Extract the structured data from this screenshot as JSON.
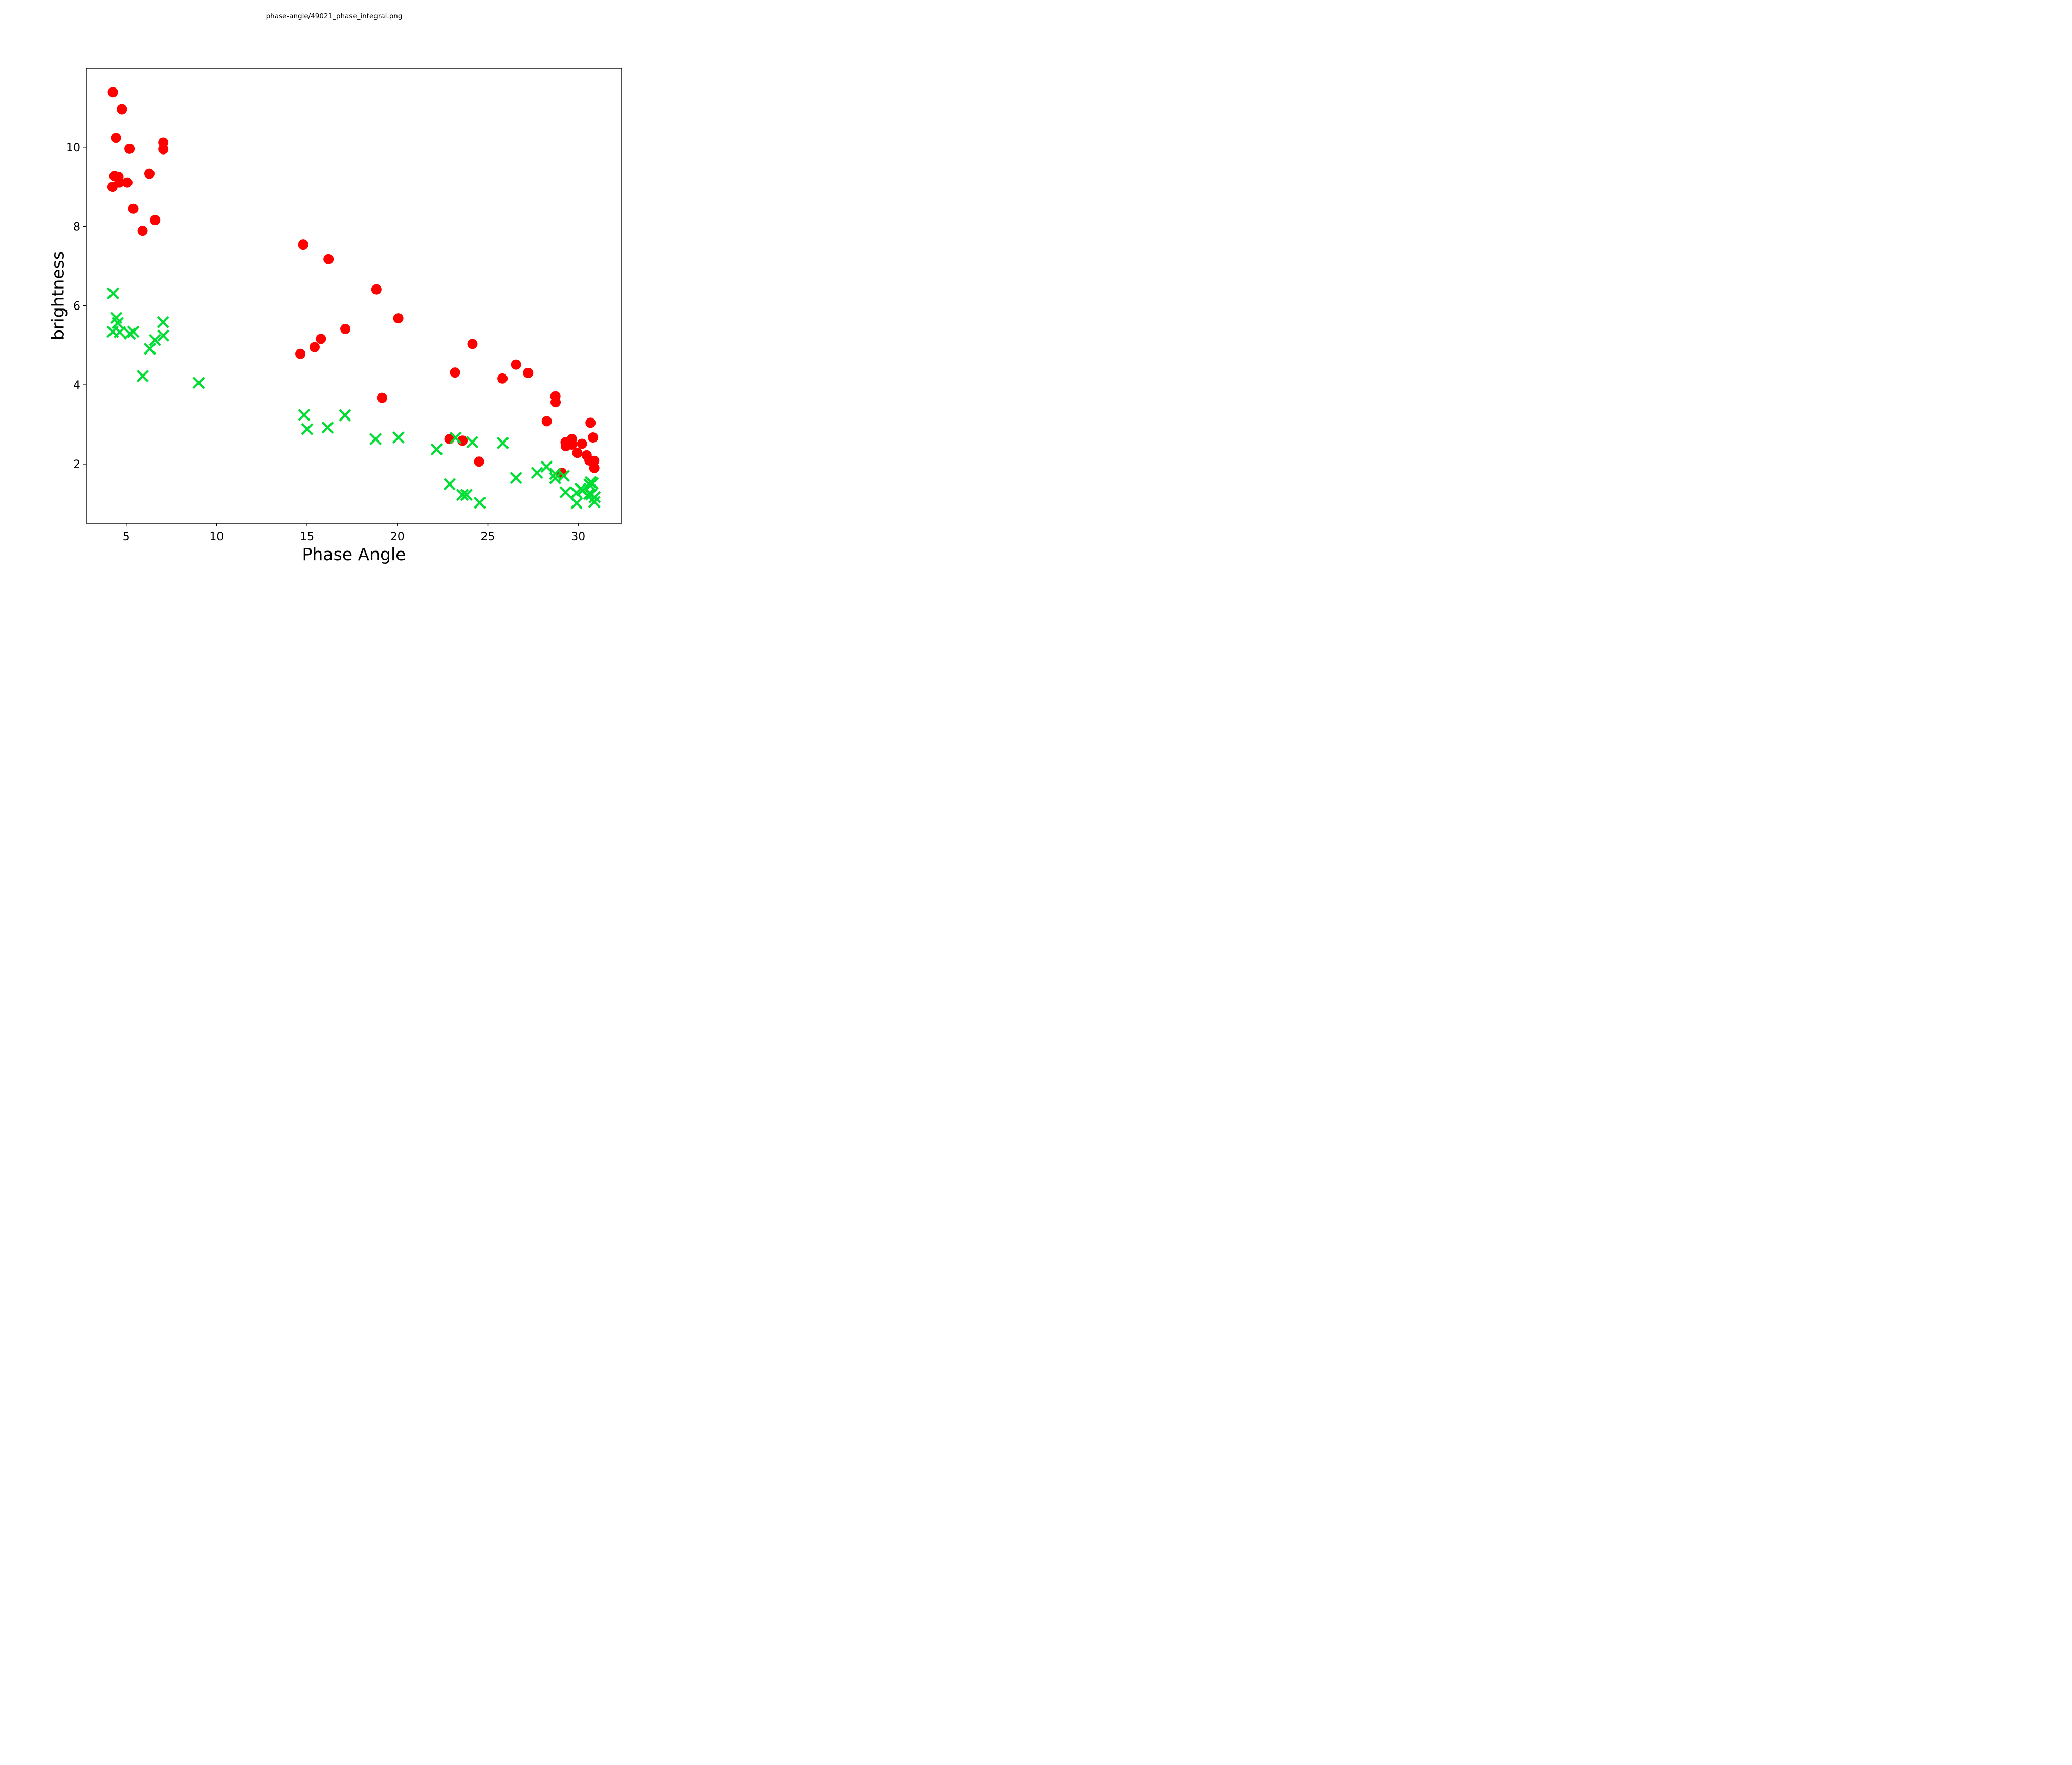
{
  "chart_data": {
    "type": "scatter",
    "title": "phase-angle/49021_phase_integral.png",
    "xlabel": "Phase Angle",
    "ylabel": "brightness",
    "xlim": [
      2.8,
      32.4
    ],
    "ylim": [
      0.5,
      12.0
    ],
    "xticks": [
      5,
      10,
      15,
      20,
      25,
      30
    ],
    "yticks": [
      2,
      4,
      6,
      8,
      10
    ],
    "grid": false,
    "legend": null,
    "series": [
      {
        "name": "red-circles",
        "marker": "circle",
        "color": "#ff0000",
        "marker_radius": 10,
        "points": [
          [
            4.26,
            11.39
          ],
          [
            4.76,
            10.96
          ],
          [
            4.43,
            10.24
          ],
          [
            5.18,
            9.96
          ],
          [
            7.05,
            10.12
          ],
          [
            7.05,
            9.95
          ],
          [
            6.28,
            9.33
          ],
          [
            4.35,
            9.27
          ],
          [
            4.57,
            9.25
          ],
          [
            4.62,
            9.11
          ],
          [
            5.06,
            9.11
          ],
          [
            4.24,
            9.0
          ],
          [
            5.39,
            8.45
          ],
          [
            6.6,
            8.16
          ],
          [
            5.9,
            7.89
          ],
          [
            14.79,
            7.54
          ],
          [
            16.19,
            7.17
          ],
          [
            18.84,
            6.41
          ],
          [
            20.05,
            5.68
          ],
          [
            17.12,
            5.41
          ],
          [
            15.77,
            5.16
          ],
          [
            15.42,
            4.95
          ],
          [
            14.63,
            4.78
          ],
          [
            19.15,
            3.67
          ],
          [
            24.15,
            5.03
          ],
          [
            23.19,
            4.31
          ],
          [
            26.56,
            4.51
          ],
          [
            25.81,
            4.16
          ],
          [
            27.23,
            4.3
          ],
          [
            28.26,
            3.08
          ],
          [
            22.88,
            2.63
          ],
          [
            23.6,
            2.59
          ],
          [
            24.52,
            2.06
          ],
          [
            28.74,
            3.71
          ],
          [
            28.75,
            3.56
          ],
          [
            30.68,
            3.04
          ],
          [
            30.82,
            2.67
          ],
          [
            29.3,
            2.55
          ],
          [
            29.32,
            2.45
          ],
          [
            29.65,
            2.63
          ],
          [
            29.66,
            2.49
          ],
          [
            30.21,
            2.51
          ],
          [
            29.95,
            2.28
          ],
          [
            30.47,
            2.22
          ],
          [
            30.62,
            2.09
          ],
          [
            30.88,
            2.08
          ],
          [
            30.89,
            1.9
          ],
          [
            29.09,
            1.78
          ]
        ]
      },
      {
        "name": "green-crosses",
        "marker": "x",
        "color": "#00dd33",
        "marker_half_size": 10.5,
        "marker_stroke": 4.2,
        "points": [
          [
            4.27,
            6.31
          ],
          [
            4.45,
            5.69
          ],
          [
            4.52,
            5.56
          ],
          [
            4.25,
            5.34
          ],
          [
            4.64,
            5.33
          ],
          [
            5.2,
            5.29
          ],
          [
            5.39,
            5.34
          ],
          [
            7.04,
            5.58
          ],
          [
            7.05,
            5.24
          ],
          [
            6.59,
            5.13
          ],
          [
            6.31,
            4.91
          ],
          [
            5.91,
            4.22
          ],
          [
            9.01,
            4.05
          ],
          [
            14.84,
            3.24
          ],
          [
            17.1,
            3.23
          ],
          [
            15.01,
            2.88
          ],
          [
            16.14,
            2.92
          ],
          [
            18.79,
            2.63
          ],
          [
            20.06,
            2.67
          ],
          [
            23.22,
            2.66
          ],
          [
            24.14,
            2.55
          ],
          [
            25.83,
            2.53
          ],
          [
            22.17,
            2.37
          ],
          [
            22.89,
            1.49
          ],
          [
            23.6,
            1.22
          ],
          [
            23.82,
            1.22
          ],
          [
            24.56,
            1.02
          ],
          [
            26.56,
            1.65
          ],
          [
            27.72,
            1.78
          ],
          [
            28.25,
            1.93
          ],
          [
            28.73,
            1.75
          ],
          [
            28.73,
            1.64
          ],
          [
            29.2,
            1.7
          ],
          [
            29.3,
            1.29
          ],
          [
            29.9,
            1.27
          ],
          [
            30.13,
            1.37
          ],
          [
            30.24,
            1.33
          ],
          [
            30.62,
            1.48
          ],
          [
            30.69,
            1.54
          ],
          [
            30.79,
            1.51
          ],
          [
            30.61,
            1.25
          ],
          [
            30.72,
            1.23
          ],
          [
            30.91,
            1.16
          ],
          [
            30.89,
            1.04
          ],
          [
            29.91,
            1.01
          ]
        ]
      }
    ]
  }
}
